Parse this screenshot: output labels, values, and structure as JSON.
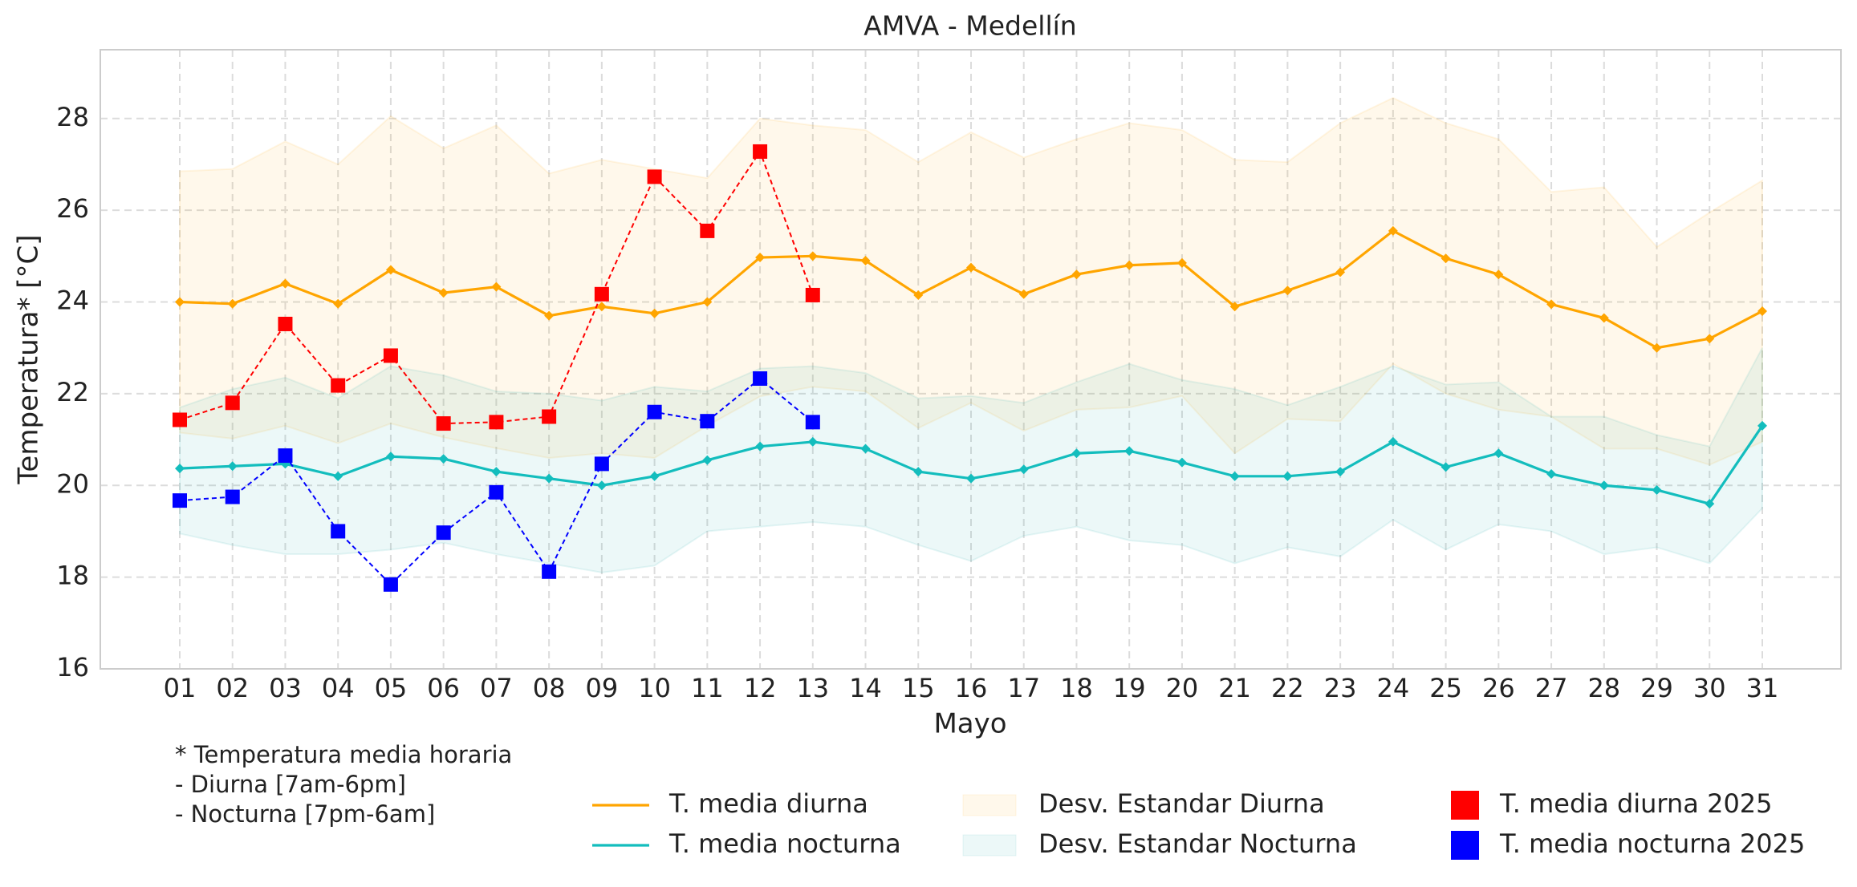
{
  "chart_data": {
    "type": "line",
    "title": "AMVA - Medellín",
    "x_label": "Mayo",
    "y_label": "Temperatura* [°C]",
    "categories": [
      "01",
      "02",
      "03",
      "04",
      "05",
      "06",
      "07",
      "08",
      "09",
      "10",
      "11",
      "12",
      "13",
      "14",
      "15",
      "16",
      "17",
      "18",
      "19",
      "20",
      "21",
      "22",
      "23",
      "24",
      "25",
      "26",
      "27",
      "28",
      "29",
      "30",
      "31"
    ],
    "ylim": [
      16,
      29.5
    ],
    "yticks": [
      16,
      18,
      20,
      22,
      24,
      26,
      28
    ],
    "grid": true,
    "series": [
      {
        "name": "T. media diurna",
        "style": "line",
        "color": "#ffa500",
        "values": [
          24.0,
          23.96,
          24.4,
          23.96,
          24.7,
          24.2,
          24.33,
          23.7,
          23.9,
          23.75,
          24.0,
          24.97,
          25.0,
          24.9,
          24.15,
          24.75,
          24.17,
          24.6,
          24.8,
          24.85,
          23.9,
          24.25,
          24.65,
          25.55,
          24.95,
          24.6,
          23.95,
          23.65,
          23.0,
          23.2,
          23.8
        ]
      },
      {
        "name": "T. media nocturna",
        "style": "line",
        "color": "#13bdbd",
        "values": [
          20.37,
          20.42,
          20.47,
          20.2,
          20.63,
          20.58,
          20.3,
          20.15,
          20.0,
          20.2,
          20.55,
          20.85,
          20.95,
          20.8,
          20.3,
          20.15,
          20.35,
          20.7,
          20.75,
          20.5,
          20.2,
          20.2,
          20.3,
          20.95,
          20.4,
          20.7,
          20.25,
          20.0,
          19.9,
          19.6,
          21.3
        ]
      },
      {
        "name": "Desv. Estandar Diurna",
        "style": "band",
        "color": "#ffa500",
        "upper": [
          26.85,
          26.9,
          27.5,
          27.0,
          28.05,
          27.35,
          27.85,
          26.8,
          27.1,
          26.9,
          26.7,
          28.0,
          27.85,
          27.75,
          27.05,
          27.7,
          27.15,
          27.55,
          27.9,
          27.75,
          27.1,
          27.05,
          27.9,
          28.45,
          27.9,
          27.55,
          26.4,
          26.5,
          25.2,
          25.95,
          26.65
        ],
        "lower": [
          21.15,
          21.02,
          21.3,
          20.92,
          21.35,
          21.05,
          20.81,
          20.6,
          20.7,
          20.6,
          21.3,
          21.94,
          22.15,
          22.05,
          21.25,
          21.8,
          21.19,
          21.65,
          21.7,
          21.95,
          20.7,
          21.45,
          21.4,
          22.65,
          22.0,
          21.65,
          21.5,
          20.8,
          20.8,
          20.45,
          20.95
        ]
      },
      {
        "name": "Desv. Estandar Nocturna",
        "style": "band",
        "color": "#13a5a5",
        "upper": [
          21.7,
          22.1,
          22.35,
          21.9,
          22.6,
          22.4,
          22.05,
          22.0,
          21.85,
          22.15,
          22.05,
          22.55,
          22.6,
          22.45,
          21.9,
          21.95,
          21.8,
          22.25,
          22.65,
          22.3,
          22.1,
          21.75,
          22.15,
          22.6,
          22.2,
          22.25,
          21.5,
          21.5,
          21.1,
          20.85,
          23.0
        ],
        "lower": [
          18.95,
          18.7,
          18.5,
          18.5,
          18.6,
          18.75,
          18.5,
          18.3,
          18.1,
          18.25,
          19.0,
          19.1,
          19.2,
          19.1,
          18.7,
          18.35,
          18.9,
          19.1,
          18.8,
          18.7,
          18.3,
          18.65,
          18.45,
          19.25,
          18.6,
          19.15,
          19.0,
          18.5,
          18.65,
          18.3,
          19.5
        ]
      },
      {
        "name": "T. media diurna 2025",
        "style": "markers",
        "color": "#ff0000",
        "values": [
          21.43,
          21.8,
          23.52,
          22.18,
          22.83,
          21.35,
          21.38,
          21.5,
          24.17,
          26.73,
          25.55,
          27.28,
          24.15,
          null,
          null,
          null,
          null,
          null,
          null,
          null,
          null,
          null,
          null,
          null,
          null,
          null,
          null,
          null,
          null,
          null,
          null
        ]
      },
      {
        "name": "T. media nocturna 2025",
        "style": "markers",
        "color": "#0000ff",
        "values": [
          19.67,
          19.75,
          20.65,
          19.0,
          17.84,
          18.97,
          19.85,
          18.12,
          20.47,
          21.6,
          21.4,
          22.33,
          21.38,
          null,
          null,
          null,
          null,
          null,
          null,
          null,
          null,
          null,
          null,
          null,
          null,
          null,
          null,
          null,
          null,
          null,
          null
        ]
      }
    ],
    "notes": [
      {
        "text": "* Temperatura media horaria",
        "color": "#000000"
      },
      {
        "text": "- Diurna [7am-6pm]",
        "color": "#ff0000"
      },
      {
        "text": "- Nocturna [7pm-6am]",
        "color": "#0000ff"
      }
    ]
  }
}
